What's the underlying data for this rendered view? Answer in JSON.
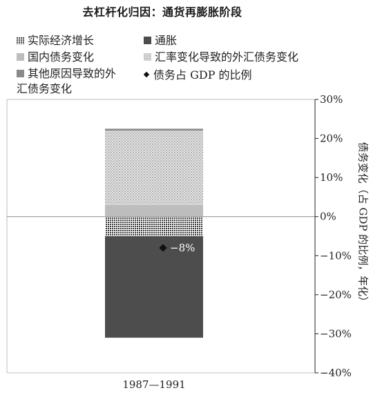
{
  "chart_data": {
    "type": "bar",
    "title": "去杠杆化归因：通货再膨胀阶段",
    "categories": [
      "1987—1991"
    ],
    "series": [
      {
        "name": "实际经济增长",
        "values": [
          -5
        ],
        "color": "#9a9a9a",
        "pattern": "grid"
      },
      {
        "name": "通胀",
        "values": [
          -26
        ],
        "color": "#4d4d4d",
        "pattern": "solid"
      },
      {
        "name": "国内债务变化",
        "values": [
          3
        ],
        "color": "#bdbdbd",
        "pattern": "solid"
      },
      {
        "name": "汇率变化导致的外汇债务变化",
        "values": [
          19
        ],
        "color": "#cfcfcf",
        "pattern": "dots"
      },
      {
        "name": "其他原因导致的外汇债务变化",
        "values": [
          0.5
        ],
        "color": "#8a8a8a",
        "pattern": "solid"
      }
    ],
    "marker": {
      "name": "债务占 GDP 的比例",
      "values": [
        -8
      ],
      "label": "−8%"
    },
    "ylabel": "债务变化（占 GDP 的比例，年化）",
    "ylim": [
      -40,
      30
    ],
    "yticks": [
      "30%",
      "20%",
      "10%",
      "0%",
      "−10%",
      "−20%",
      "−30%",
      "−40%"
    ],
    "ytick_values": [
      30,
      20,
      10,
      0,
      -10,
      -20,
      -30,
      -40
    ],
    "y_axis_side": "right",
    "legend_position": "top-left"
  }
}
